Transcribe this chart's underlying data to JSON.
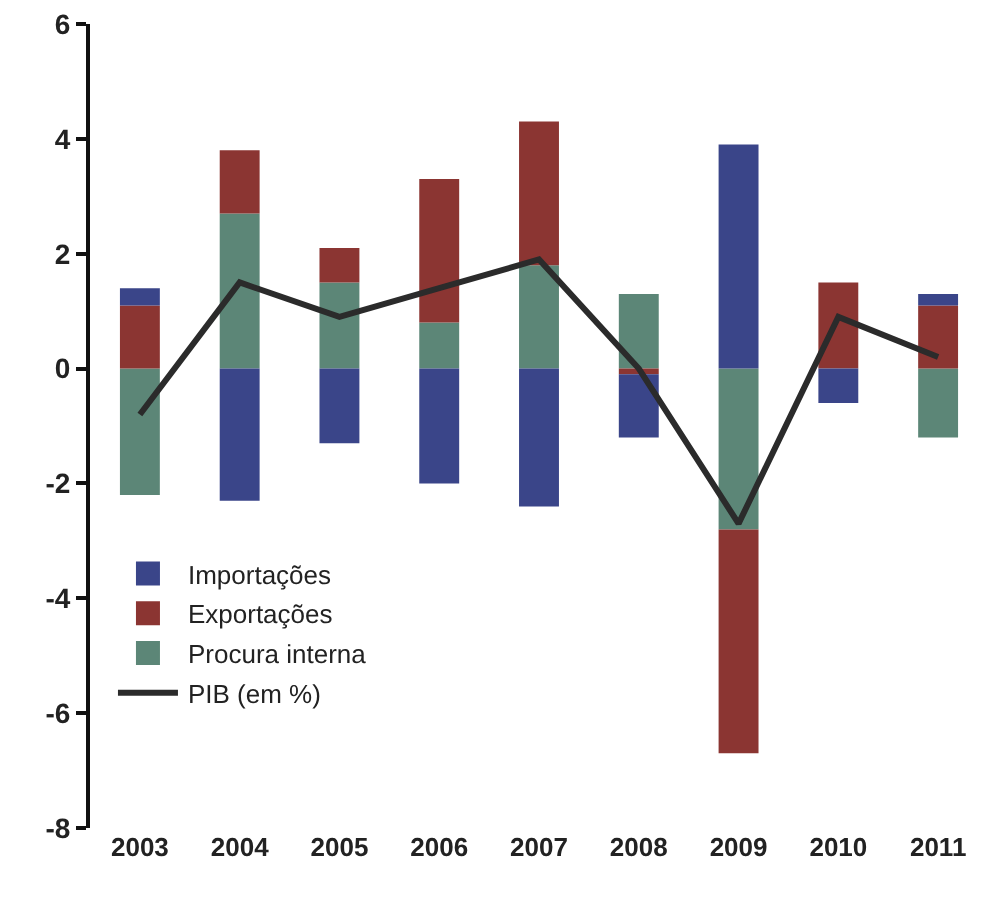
{
  "chart_data": {
    "type": "bar",
    "stacked": true,
    "categories": [
      "2003",
      "2004",
      "2005",
      "2006",
      "2007",
      "2008",
      "2009",
      "2010",
      "2011"
    ],
    "series": [
      {
        "name": "Procura interna",
        "color": "#5c8677",
        "values": [
          -2.2,
          2.7,
          1.5,
          0.8,
          1.8,
          1.3,
          -2.8,
          0,
          -1.2
        ]
      },
      {
        "name": "Exportações",
        "color": "#8b3532",
        "values": [
          1.1,
          1.1,
          0.6,
          2.5,
          2.5,
          -0.1,
          -3.9,
          1.5,
          1.1
        ]
      },
      {
        "name": "Importações",
        "color": "#3a4589",
        "values": [
          0.3,
          -2.3,
          -1.3,
          -2.0,
          -2.4,
          -1.1,
          3.9,
          -0.6,
          0.2
        ]
      },
      {
        "name": "PIB (em %)",
        "type": "line",
        "color": "#2b2b2b",
        "values": [
          -0.8,
          1.5,
          0.9,
          1.4,
          1.9,
          0.0,
          -2.7,
          0.9,
          0.2
        ]
      }
    ],
    "ylim": [
      -8,
      6
    ],
    "yticks": [
      -8,
      -6,
      -4,
      -2,
      0,
      2,
      4,
      6
    ],
    "grid": false,
    "legend": "bottom left",
    "marker": "none",
    "line_style": "solid"
  }
}
